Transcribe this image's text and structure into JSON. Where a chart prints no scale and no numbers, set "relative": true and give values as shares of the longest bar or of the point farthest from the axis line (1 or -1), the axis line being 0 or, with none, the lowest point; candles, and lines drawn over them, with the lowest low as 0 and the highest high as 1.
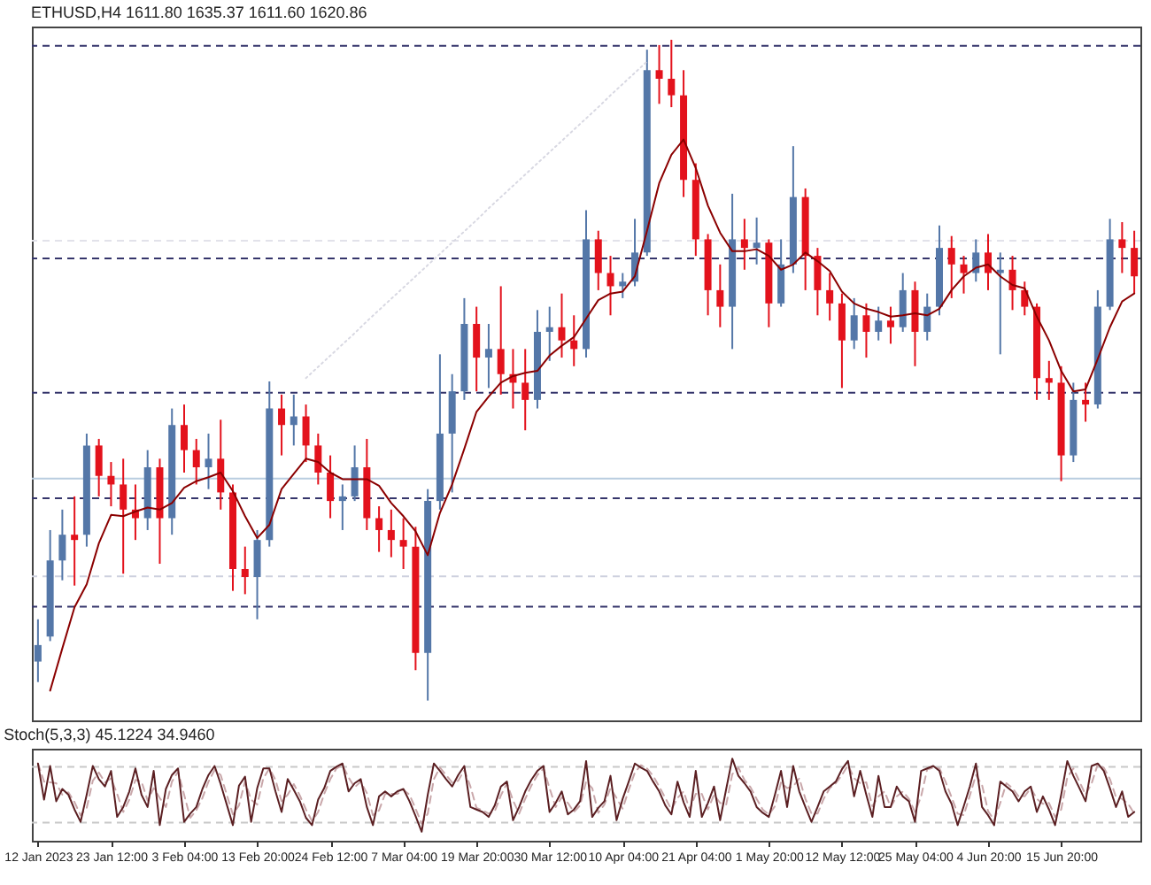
{
  "chart_data": [
    {
      "type": "candlestick",
      "title": "ETHUSD,H4  1611.80 1635.37 1611.60 1620.86",
      "relative": true,
      "categories": [
        null,
        null,
        null,
        null,
        null,
        null,
        null,
        null,
        null,
        null,
        null,
        null,
        null,
        null,
        null,
        null,
        null,
        null,
        null,
        null,
        null,
        null,
        null,
        null,
        null,
        null,
        null,
        null,
        null,
        null,
        null,
        null,
        null,
        null,
        null,
        null,
        null,
        null,
        null,
        null,
        null,
        null,
        null,
        null,
        null,
        null,
        null,
        null,
        null,
        null,
        null,
        null,
        null,
        null,
        null,
        null,
        null,
        null,
        null,
        null,
        null,
        null,
        null,
        null,
        null,
        null,
        null,
        null,
        null,
        null,
        null,
        null,
        null,
        null,
        null,
        null,
        null,
        null,
        null,
        null,
        null,
        null,
        null,
        null,
        null,
        null,
        null,
        null,
        null,
        null,
        null
      ],
      "ohlc": [
        [
          0.059,
          0.123,
          0.028,
          0.084
        ],
        [
          0.097,
          0.258,
          0.09,
          0.212
        ],
        [
          0.212,
          0.289,
          0.182,
          0.251
        ],
        [
          0.251,
          0.309,
          0.174,
          0.243
        ],
        [
          0.251,
          0.404,
          0.233,
          0.386
        ],
        [
          0.386,
          0.396,
          0.309,
          0.34
        ],
        [
          0.34,
          0.361,
          0.294,
          0.327
        ],
        [
          0.327,
          0.366,
          0.192,
          0.289
        ],
        [
          0.289,
          0.327,
          0.243,
          0.276
        ],
        [
          0.276,
          0.379,
          0.258,
          0.353
        ],
        [
          0.353,
          0.366,
          0.207,
          0.276
        ],
        [
          0.276,
          0.442,
          0.251,
          0.417
        ],
        [
          0.417,
          0.448,
          0.345,
          0.379
        ],
        [
          0.379,
          0.396,
          0.327,
          0.353
        ],
        [
          0.353,
          0.404,
          0.32,
          0.366
        ],
        [
          0.366,
          0.425,
          0.289,
          0.315
        ],
        [
          0.315,
          0.327,
          0.166,
          0.199
        ],
        [
          0.199,
          0.233,
          0.161,
          0.187
        ],
        [
          0.187,
          0.258,
          0.123,
          0.243
        ],
        [
          0.243,
          0.483,
          0.233,
          0.442
        ],
        [
          0.442,
          0.463,
          0.371,
          0.417
        ],
        [
          0.417,
          0.463,
          0.386,
          0.43
        ],
        [
          0.43,
          0.448,
          0.361,
          0.386
        ],
        [
          0.386,
          0.404,
          0.327,
          0.345
        ],
        [
          0.345,
          0.371,
          0.276,
          0.302
        ],
        [
          0.302,
          0.327,
          0.258,
          0.309
        ],
        [
          0.309,
          0.386,
          0.302,
          0.353
        ],
        [
          0.353,
          0.396,
          0.258,
          0.276
        ],
        [
          0.276,
          0.294,
          0.225,
          0.258
        ],
        [
          0.258,
          0.289,
          0.217,
          0.243
        ],
        [
          0.243,
          0.276,
          0.199,
          0.233
        ],
        [
          0.233,
          0.263,
          0.046,
          0.072
        ],
        [
          0.072,
          0.32,
          0.0,
          0.302
        ],
        [
          0.302,
          0.524,
          0.289,
          0.404
        ],
        [
          0.404,
          0.494,
          0.315,
          0.468
        ],
        [
          0.468,
          0.609,
          0.455,
          0.57
        ],
        [
          0.57,
          0.596,
          0.468,
          0.519
        ],
        [
          0.519,
          0.57,
          0.473,
          0.532
        ],
        [
          0.532,
          0.627,
          0.463,
          0.494
        ],
        [
          0.494,
          0.532,
          0.442,
          0.481
        ],
        [
          0.481,
          0.532,
          0.409,
          0.455
        ],
        [
          0.455,
          0.591,
          0.442,
          0.558
        ],
        [
          0.558,
          0.596,
          0.514,
          0.565
        ],
        [
          0.565,
          0.616,
          0.519,
          0.545
        ],
        [
          0.545,
          0.583,
          0.506,
          0.532
        ],
        [
          0.532,
          0.742,
          0.519,
          0.698
        ],
        [
          0.698,
          0.711,
          0.621,
          0.647
        ],
        [
          0.647,
          0.673,
          0.583,
          0.627
        ],
        [
          0.627,
          0.647,
          0.609,
          0.634
        ],
        [
          0.634,
          0.729,
          0.627,
          0.678
        ],
        [
          0.678,
          0.985,
          0.673,
          0.954
        ],
        [
          0.954,
          0.992,
          0.903,
          0.941
        ],
        [
          0.941,
          1.0,
          0.898,
          0.916
        ],
        [
          0.916,
          0.954,
          0.762,
          0.788
        ],
        [
          0.788,
          0.813,
          0.673,
          0.698
        ],
        [
          0.698,
          0.706,
          0.583,
          0.621
        ],
        [
          0.621,
          0.66,
          0.565,
          0.596
        ],
        [
          0.596,
          0.767,
          0.532,
          0.698
        ],
        [
          0.698,
          0.729,
          0.652,
          0.685
        ],
        [
          0.685,
          0.731,
          0.66,
          0.693
        ],
        [
          0.693,
          0.698,
          0.565,
          0.601
        ],
        [
          0.601,
          0.698,
          0.596,
          0.66
        ],
        [
          0.66,
          0.839,
          0.647,
          0.762
        ],
        [
          0.762,
          0.775,
          0.621,
          0.673
        ],
        [
          0.673,
          0.685,
          0.583,
          0.621
        ],
        [
          0.621,
          0.647,
          0.575,
          0.601
        ],
        [
          0.601,
          0.616,
          0.473,
          0.545
        ],
        [
          0.545,
          0.609,
          0.532,
          0.583
        ],
        [
          0.583,
          0.601,
          0.519,
          0.558
        ],
        [
          0.558,
          0.596,
          0.545,
          0.575
        ],
        [
          0.575,
          0.596,
          0.54,
          0.565
        ],
        [
          0.565,
          0.647,
          0.558,
          0.621
        ],
        [
          0.621,
          0.634,
          0.506,
          0.558
        ],
        [
          0.558,
          0.616,
          0.545,
          0.596
        ],
        [
          0.596,
          0.719,
          0.583,
          0.685
        ],
        [
          0.685,
          0.703,
          0.609,
          0.66
        ],
        [
          0.66,
          0.673,
          0.616,
          0.647
        ],
        [
          0.647,
          0.698,
          0.634,
          0.678
        ],
        [
          0.678,
          0.706,
          0.621,
          0.647
        ],
        [
          0.647,
          0.678,
          0.524,
          0.652
        ],
        [
          0.652,
          0.673,
          0.591,
          0.621
        ],
        [
          0.621,
          0.634,
          0.583,
          0.596
        ],
        [
          0.596,
          0.601,
          0.455,
          0.488
        ],
        [
          0.488,
          0.514,
          0.455,
          0.481
        ],
        [
          0.481,
          0.506,
          0.332,
          0.371
        ],
        [
          0.371,
          0.481,
          0.361,
          0.455
        ],
        [
          0.455,
          0.481,
          0.422,
          0.448
        ],
        [
          0.448,
          0.621,
          0.442,
          0.596
        ],
        [
          0.596,
          0.729,
          0.591,
          0.698
        ],
        [
          0.698,
          0.724,
          0.647,
          0.685
        ],
        [
          0.685,
          0.711,
          0.616,
          0.642
        ]
      ],
      "colors": [
        "#5477a8",
        "#5477a8",
        "#5477a8",
        "#e3121c",
        "#5477a8",
        "#e3121c",
        "#e3121c",
        "#e3121c",
        "#e3121c",
        "#5477a8",
        "#e3121c",
        "#5477a8",
        "#e3121c",
        "#e3121c",
        "#5477a8",
        "#e3121c",
        "#e3121c",
        "#e3121c",
        "#5477a8",
        "#5477a8",
        "#e3121c",
        "#5477a8",
        "#e3121c",
        "#e3121c",
        "#e3121c",
        "#5477a8",
        "#5477a8",
        "#e3121c",
        "#e3121c",
        "#e3121c",
        "#e3121c",
        "#e3121c",
        "#5477a8",
        "#5477a8",
        "#5477a8",
        "#5477a8",
        "#e3121c",
        "#5477a8",
        "#e3121c",
        "#e3121c",
        "#e3121c",
        "#5477a8",
        "#5477a8",
        "#e3121c",
        "#e3121c",
        "#5477a8",
        "#e3121c",
        "#e3121c",
        "#5477a8",
        "#5477a8",
        "#5477a8",
        "#e3121c",
        "#e3121c",
        "#e3121c",
        "#e3121c",
        "#e3121c",
        "#e3121c",
        "#5477a8",
        "#e3121c",
        "#5477a8",
        "#e3121c",
        "#5477a8",
        "#5477a8",
        "#e3121c",
        "#e3121c",
        "#e3121c",
        "#e3121c",
        "#5477a8",
        "#e3121c",
        "#5477a8",
        "#e3121c",
        "#5477a8",
        "#e3121c",
        "#5477a8",
        "#5477a8",
        "#e3121c",
        "#e3121c",
        "#5477a8",
        "#e3121c",
        "#5477a8",
        "#e3121c",
        "#e3121c",
        "#e3121c",
        "#e3121c",
        "#e3121c",
        "#5477a8",
        "#e3121c",
        "#5477a8",
        "#5477a8",
        "#e3121c",
        "#e3121c"
      ],
      "series": [
        {
          "type": "line",
          "color": "#d8d8e2",
          "line_style": "dotted",
          "values": [
            null,
            null,
            null,
            null,
            null,
            null,
            null,
            null,
            null,
            null,
            null,
            null,
            null,
            null,
            null,
            null,
            null,
            null,
            null,
            null,
            null,
            null,
            0.488,
            0.505,
            0.522,
            0.539,
            0.556,
            0.574,
            0.591,
            0.608,
            0.625,
            0.642,
            0.659,
            0.676,
            0.693,
            0.71,
            0.727,
            0.745,
            0.762,
            0.779,
            0.796,
            0.813,
            0.83,
            0.847,
            0.864,
            0.881,
            0.898,
            0.916,
            0.933,
            0.95,
            0.967,
            null,
            null,
            null,
            null,
            null,
            null,
            null,
            null,
            null,
            null,
            null,
            null,
            null,
            null,
            null,
            null,
            null,
            null,
            null,
            null,
            null,
            null,
            null,
            null,
            null,
            null,
            null,
            null,
            null,
            null,
            null,
            null,
            null,
            null,
            null,
            null,
            null,
            null,
            null,
            null
          ]
        },
        {
          "type": "line",
          "color": "#8b0000",
          "values": [
            null,
            0.015,
            0.079,
            0.141,
            0.176,
            0.238,
            0.281,
            0.279,
            0.286,
            0.292,
            0.289,
            0.299,
            0.322,
            0.332,
            0.338,
            0.345,
            0.317,
            0.279,
            0.246,
            0.266,
            0.32,
            0.343,
            0.366,
            0.361,
            0.345,
            0.335,
            0.335,
            0.335,
            0.325,
            0.299,
            0.279,
            0.256,
            0.22,
            0.284,
            0.327,
            0.381,
            0.437,
            0.46,
            0.481,
            0.491,
            0.496,
            0.499,
            0.522,
            0.537,
            0.55,
            0.578,
            0.606,
            0.616,
            0.619,
            0.642,
            0.711,
            0.783,
            0.826,
            0.849,
            0.806,
            0.749,
            0.708,
            0.68,
            0.68,
            0.683,
            0.673,
            0.652,
            0.66,
            0.678,
            0.665,
            0.65,
            0.619,
            0.601,
            0.593,
            0.588,
            0.581,
            0.583,
            0.586,
            0.583,
            0.593,
            0.621,
            0.642,
            0.655,
            0.66,
            0.642,
            0.629,
            0.624,
            0.581,
            0.545,
            0.499,
            0.468,
            0.471,
            0.517,
            0.565,
            0.604,
            0.616
          ]
        }
      ],
      "ref_lines": [
        {
          "axis": "y",
          "value": 0.991,
          "color": "#35356b",
          "line_style": "dashed"
        },
        {
          "axis": "y",
          "value": 0.696,
          "color": "#e2e2ea",
          "line_style": "dashed"
        },
        {
          "axis": "y",
          "value": 0.669,
          "color": "#35356b",
          "line_style": "dashed"
        },
        {
          "axis": "y",
          "value": 0.466,
          "color": "#35356b",
          "line_style": "dashed"
        },
        {
          "axis": "y",
          "value": 0.336,
          "color": "#b9cde0",
          "line_style": "solid"
        },
        {
          "axis": "y",
          "value": 0.306,
          "color": "#35356b",
          "line_style": "dashed"
        },
        {
          "axis": "y",
          "value": 0.188,
          "color": "#cdd0de",
          "line_style": "dashed"
        },
        {
          "axis": "y",
          "value": 0.142,
          "color": "#35356b",
          "line_style": "dashed"
        }
      ]
    },
    {
      "type": "line",
      "title": "Stoch(5,3,3) 45.1224 34.9460",
      "relative": true,
      "categories": [
        "12 Jan 2023",
        null,
        null,
        null,
        null,
        null,
        null,
        null,
        null,
        null,
        null,
        null,
        "23 Jan 12:00",
        null,
        null,
        null,
        null,
        null,
        null,
        null,
        null,
        null,
        null,
        null,
        "3 Feb 04:00",
        null,
        null,
        null,
        null,
        null,
        null,
        null,
        null,
        null,
        null,
        null,
        "13 Feb 20:00",
        null,
        null,
        null,
        null,
        null,
        null,
        null,
        null,
        null,
        null,
        null,
        "24 Feb 12:00",
        null,
        null,
        null,
        null,
        null,
        null,
        null,
        null,
        null,
        null,
        null,
        "7 Mar 04:00",
        null,
        null,
        null,
        null,
        null,
        null,
        null,
        null,
        null,
        null,
        null,
        "19 Mar 20:00",
        null,
        null,
        null,
        null,
        null,
        null,
        null,
        null,
        null,
        null,
        null,
        "30 Mar 12:00",
        null,
        null,
        null,
        null,
        null,
        null,
        null,
        null,
        null,
        null,
        null,
        "10 Apr 04:00",
        null,
        null,
        null,
        null,
        null,
        null,
        null,
        null,
        null,
        null,
        null,
        "21 Apr 04:00",
        null,
        null,
        null,
        null,
        null,
        null,
        null,
        null,
        null,
        null,
        null,
        "1 May 20:00",
        null,
        null,
        null,
        null,
        null,
        null,
        null,
        null,
        null,
        null,
        null,
        "12 May 12:00",
        null,
        null,
        null,
        null,
        null,
        null,
        null,
        null,
        null,
        null,
        null,
        "25 May 04:00",
        null,
        null,
        null,
        null,
        null,
        null,
        null,
        null,
        null,
        null,
        null,
        "4 Jun 20:00",
        null,
        null,
        null,
        null,
        null,
        null,
        null,
        null,
        null,
        null,
        null,
        "15 Jun 20:00",
        null,
        null,
        null,
        null,
        null,
        null,
        null,
        null,
        null,
        null,
        null,
        null
      ],
      "series": [
        {
          "color": "#c9a7aa",
          "line_style": "dashed",
          "values": [
            0.94,
            0.72,
            0.71,
            0.7,
            0.56,
            0.59,
            0.47,
            0.31,
            0.4,
            0.73,
            0.83,
            0.71,
            0.76,
            0.57,
            0.35,
            0.5,
            0.74,
            0.72,
            0.49,
            0.64,
            0.52,
            0.41,
            0.72,
            0.84,
            0.56,
            0.28,
            0.37,
            0.52,
            0.72,
            0.86,
            0.8,
            0.56,
            0.32,
            0.43,
            0.72,
            0.5,
            0.44,
            0.76,
            0.88,
            0.74,
            0.48,
            0.56,
            0.69,
            0.55,
            0.38,
            0.24,
            0.35,
            0.57,
            0.75,
            0.88,
            0.92,
            0.77,
            0.65,
            0.72,
            0.58,
            0.31,
            0.37,
            0.57,
            0.57,
            0.57,
            0.62,
            0.56,
            0.39,
            0.21,
            0.33,
            0.75,
            0.89,
            0.8,
            0.71,
            0.73,
            0.86,
            0.66,
            0.4,
            0.37,
            0.33,
            0.36,
            0.55,
            0.7,
            0.49,
            0.33,
            0.51,
            0.67,
            0.8,
            0.88,
            0.64,
            0.41,
            0.53,
            0.46,
            0.35,
            0.43,
            0.72,
            0.64,
            0.34,
            0.44,
            0.64,
            0.52,
            0.39,
            0.62,
            0.83,
            0.92,
            0.88,
            0.79,
            0.66,
            0.52,
            0.38,
            0.52,
            0.6,
            0.38,
            0.57,
            0.57,
            0.38,
            0.56,
            0.46,
            0.44,
            0.81,
            0.89,
            0.74,
            0.65,
            0.51,
            0.38,
            0.32,
            0.42,
            0.71,
            0.64,
            0.66,
            0.76,
            0.51,
            0.33,
            0.33,
            0.51,
            0.64,
            0.7,
            0.8,
            0.92,
            0.76,
            0.7,
            0.71,
            0.42,
            0.54,
            0.6,
            0.41,
            0.54,
            0.6,
            0.51,
            0.35,
            0.54,
            0.87,
            0.89,
            0.88,
            0.72,
            0.53,
            0.33,
            0.31,
            0.55,
            0.8,
            0.68,
            0.36,
            0.25,
            0.46,
            0.7,
            0.64,
            0.54,
            0.54,
            0.64,
            0.51,
            0.45,
            0.46,
            0.29,
            0.38,
            0.77,
            0.88,
            0.72,
            0.56,
            0.7,
            0.93,
            0.89,
            0.75,
            0.53,
            0.51,
            0.45,
            0.33
          ]
        },
        {
          "color": "#5b1f22",
          "values": [
            0.94,
            0.5,
            0.91,
            0.48,
            0.63,
            0.56,
            0.38,
            0.23,
            0.56,
            0.91,
            0.75,
            0.66,
            0.85,
            0.29,
            0.41,
            0.6,
            0.88,
            0.56,
            0.41,
            0.85,
            0.19,
            0.63,
            0.8,
            0.88,
            0.23,
            0.33,
            0.41,
            0.63,
            0.8,
            0.91,
            0.69,
            0.44,
            0.19,
            0.67,
            0.78,
            0.23,
            0.64,
            0.88,
            0.88,
            0.6,
            0.35,
            0.75,
            0.62,
            0.48,
            0.28,
            0.19,
            0.5,
            0.64,
            0.85,
            0.9,
            0.94,
            0.6,
            0.7,
            0.75,
            0.41,
            0.19,
            0.54,
            0.6,
            0.54,
            0.6,
            0.63,
            0.48,
            0.3,
            0.11,
            0.56,
            0.94,
            0.85,
            0.75,
            0.66,
            0.8,
            0.91,
            0.41,
            0.38,
            0.35,
            0.29,
            0.43,
            0.66,
            0.72,
            0.25,
            0.41,
            0.6,
            0.74,
            0.85,
            0.91,
            0.35,
            0.46,
            0.6,
            0.32,
            0.38,
            0.48,
            0.97,
            0.29,
            0.4,
            0.48,
            0.79,
            0.25,
            0.51,
            0.72,
            0.94,
            0.89,
            0.85,
            0.72,
            0.6,
            0.43,
            0.32,
            0.72,
            0.47,
            0.29,
            0.85,
            0.29,
            0.46,
            0.66,
            0.25,
            0.63,
            1.0,
            0.79,
            0.7,
            0.6,
            0.41,
            0.34,
            0.29,
            0.56,
            0.85,
            0.41,
            0.91,
            0.6,
            0.41,
            0.23,
            0.41,
            0.6,
            0.66,
            0.72,
            0.87,
            0.97,
            0.54,
            0.85,
            0.56,
            0.29,
            0.79,
            0.41,
            0.41,
            0.66,
            0.54,
            0.48,
            0.23,
            0.85,
            0.88,
            0.91,
            0.85,
            0.6,
            0.45,
            0.19,
            0.42,
            0.66,
            0.94,
            0.41,
            0.31,
            0.19,
            0.72,
            0.66,
            0.6,
            0.48,
            0.6,
            0.66,
            0.35,
            0.54,
            0.38,
            0.19,
            0.56,
            0.97,
            0.79,
            0.64,
            0.48,
            0.91,
            0.94,
            0.85,
            0.64,
            0.41,
            0.6,
            0.29,
            0.35
          ]
        }
      ],
      "ref_lines": [
        {
          "axis": "y",
          "value": 0.9,
          "color": "#c8c8c8",
          "line_style": "dashed"
        },
        {
          "axis": "y",
          "value": 0.22,
          "color": "#c8c8c8",
          "line_style": "dashed"
        }
      ]
    }
  ]
}
